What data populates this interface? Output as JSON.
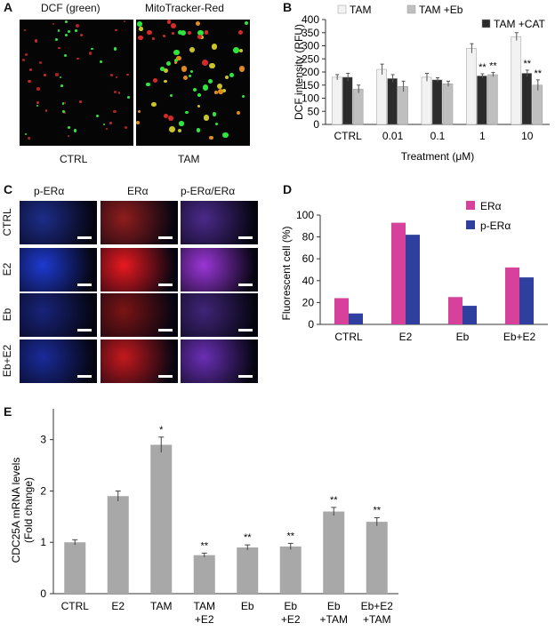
{
  "panels": {
    "a": {
      "letter": "A",
      "col_labels": [
        "DCF (green)",
        "MitoTracker-Red"
      ],
      "row_labels": [
        "CTRL",
        "TAM"
      ]
    },
    "b": {
      "letter": "B"
    },
    "c": {
      "letter": "C",
      "col_labels": [
        "p-ERα",
        "ERα",
        "p-ERα/ERα"
      ],
      "row_labels": [
        "CTRL",
        "E2",
        "Eb",
        "Eb+E2"
      ]
    },
    "d": {
      "letter": "D"
    },
    "e": {
      "letter": "E"
    }
  },
  "colors": {
    "white_bar": "#f2f2f2",
    "grey_bar": "#bfbfbf",
    "dark_bar": "#2b2b2b",
    "magenta": "#d6419b",
    "blue": "#2f3f9e",
    "e_bar": "#a8a8a8"
  },
  "chart_data": [
    {
      "id": "B",
      "type": "bar",
      "xlabel": "Treatment (μM)",
      "ylabel": "DCF intensity (RFU)",
      "ylim": [
        0,
        400
      ],
      "yticks": [
        0,
        50,
        100,
        150,
        200,
        250,
        300,
        350,
        400
      ],
      "categories": [
        "CTRL",
        "0.01",
        "0.1",
        "1",
        "10"
      ],
      "legend": [
        "TAM",
        "TAM +Eb",
        "TAM +CAT"
      ],
      "series": [
        {
          "name": "TAM",
          "values": [
            180,
            210,
            180,
            290,
            335
          ],
          "errors": [
            10,
            20,
            15,
            18,
            15
          ]
        },
        {
          "name": "TAM +CAT",
          "values": [
            180,
            175,
            170,
            185,
            195
          ],
          "errors": [
            15,
            15,
            8,
            8,
            12
          ]
        },
        {
          "name": "TAM +Eb",
          "values": [
            135,
            145,
            155,
            190,
            150
          ],
          "errors": [
            15,
            20,
            10,
            8,
            20
          ]
        }
      ],
      "annotations": [
        {
          "category": "1",
          "text": "**"
        },
        {
          "category": "1",
          "text": "**"
        },
        {
          "category": "10",
          "text": "**"
        },
        {
          "category": "10",
          "text": "**"
        }
      ]
    },
    {
      "id": "D",
      "type": "bar",
      "ylabel": "Fluorescent cell (%)",
      "ylim": [
        0,
        100
      ],
      "yticks": [
        0,
        20,
        40,
        60,
        80,
        100
      ],
      "categories": [
        "CTRL",
        "E2",
        "Eb",
        "Eb+E2"
      ],
      "legend": [
        "ERα",
        "p-ERα"
      ],
      "series": [
        {
          "name": "ERα",
          "values": [
            24,
            93,
            25,
            52
          ]
        },
        {
          "name": "p-ERα",
          "values": [
            10,
            82,
            17,
            43
          ]
        }
      ]
    },
    {
      "id": "E",
      "type": "bar",
      "ylabel": "CDC25A mRNA levels (Fold change)",
      "ylabel_lines": [
        "CDC25A mRNA levels",
        "(Fold change)"
      ],
      "ylim": [
        0,
        3.6
      ],
      "yticks": [
        0,
        1,
        2,
        3
      ],
      "categories": [
        "CTRL",
        "E2",
        "TAM",
        "TAM +E2",
        "Eb",
        "Eb +E2",
        "Eb +TAM",
        "Eb+E2 +TAM"
      ],
      "category_lines": [
        [
          "CTRL"
        ],
        [
          "E2"
        ],
        [
          "TAM"
        ],
        [
          "TAM",
          "+E2"
        ],
        [
          "Eb"
        ],
        [
          "Eb",
          "+E2"
        ],
        [
          "Eb",
          "+TAM"
        ],
        [
          "Eb+E2",
          "+TAM"
        ]
      ],
      "values": [
        1.0,
        1.9,
        2.9,
        0.75,
        0.9,
        0.92,
        1.6,
        1.4
      ],
      "errors": [
        0.05,
        0.1,
        0.15,
        0.04,
        0.05,
        0.06,
        0.08,
        0.08
      ],
      "annotations": [
        "",
        "",
        "*",
        "**",
        "**",
        "**",
        "**",
        "**"
      ]
    }
  ]
}
